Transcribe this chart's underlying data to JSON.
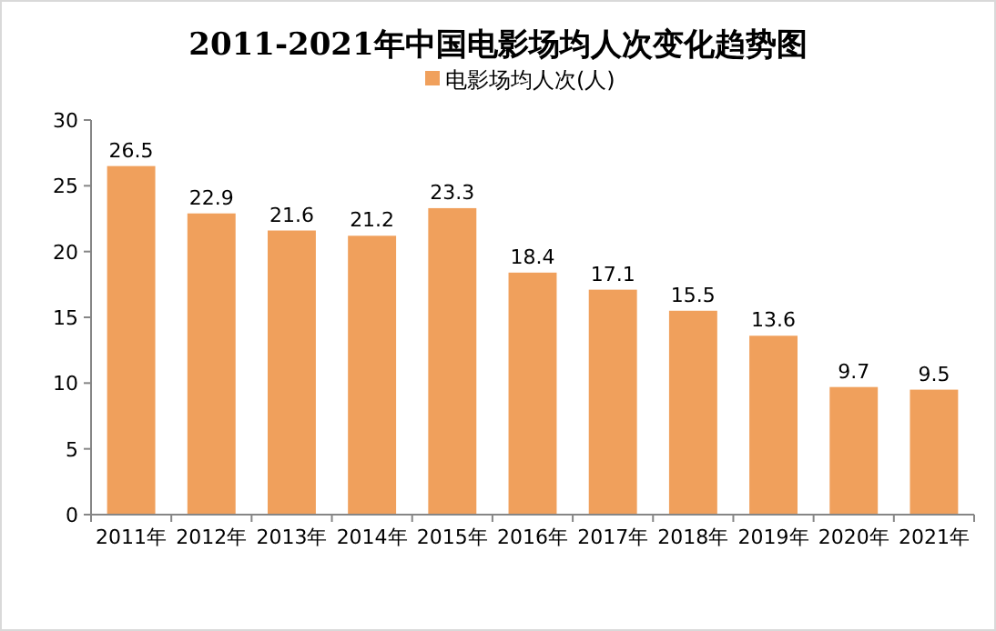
{
  "chart_data": {
    "type": "bar",
    "title": "2011-2021年中国电影场均人次变化趋势图",
    "categories": [
      "2011年",
      "2012年",
      "2013年",
      "2014年",
      "2015年",
      "2016年",
      "2017年",
      "2018年",
      "2019年",
      "2020年",
      "2021年"
    ],
    "series": [
      {
        "name": "电影场均人次(人)",
        "color": "#f0a05c",
        "values": [
          26.5,
          22.9,
          21.6,
          21.2,
          23.3,
          18.4,
          17.1,
          15.5,
          13.6,
          9.7,
          9.5
        ]
      }
    ],
    "ylim": [
      0,
      30
    ],
    "yticks": [
      0,
      5,
      10,
      15,
      20,
      25,
      30
    ],
    "data_labels": true,
    "legend": "top"
  }
}
